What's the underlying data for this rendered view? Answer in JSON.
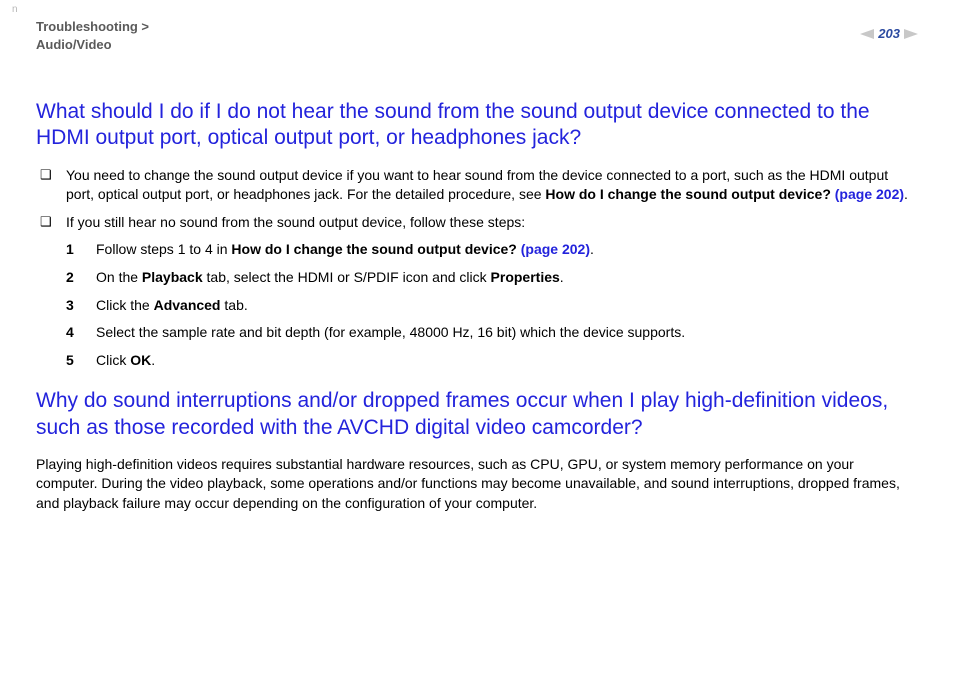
{
  "header": {
    "breadcrumb1": "Troubleshooting >",
    "breadcrumb2": "Audio/Video",
    "page_number": "203",
    "corner_mark": "n"
  },
  "section1": {
    "heading": "What should I do if I do not hear the sound from the sound output device connected to the HDMI output port, optical output port, or headphones jack?",
    "bullet1_pre": "You need to change the sound output device if you want to hear sound from the device connected to a port, such as the HDMI output port, optical output port, or headphones jack. For the detailed procedure, see ",
    "bullet1_bold": "How do I change the sound output device? ",
    "bullet1_link": "(page 202)",
    "bullet1_post": ".",
    "bullet2": "If you still hear no sound from the sound output device, follow these steps:",
    "step1_pre": "Follow steps 1 to 4 in ",
    "step1_bold": "How do I change the sound output device? ",
    "step1_link": "(page 202)",
    "step1_post": ".",
    "step2_a": "On the ",
    "step2_b": "Playback",
    "step2_c": " tab, select the HDMI or S/PDIF icon and click ",
    "step2_d": "Properties",
    "step2_e": ".",
    "step3_a": "Click the ",
    "step3_b": "Advanced",
    "step3_c": " tab.",
    "step4": "Select the sample rate and bit depth (for example, 48000 Hz, 16 bit) which the device supports.",
    "step5_a": "Click ",
    "step5_b": "OK",
    "step5_c": "."
  },
  "section2": {
    "heading": "Why do sound interruptions and/or dropped frames occur when I play high-definition videos, such as those recorded with the AVCHD digital video camcorder?",
    "body": "Playing high-definition videos requires substantial hardware resources, such as CPU, GPU, or system memory performance on your computer. During the video playback, some operations and/or functions may become unavailable, and sound interruptions, dropped frames, and playback failure may occur depending on the configuration of your computer."
  }
}
